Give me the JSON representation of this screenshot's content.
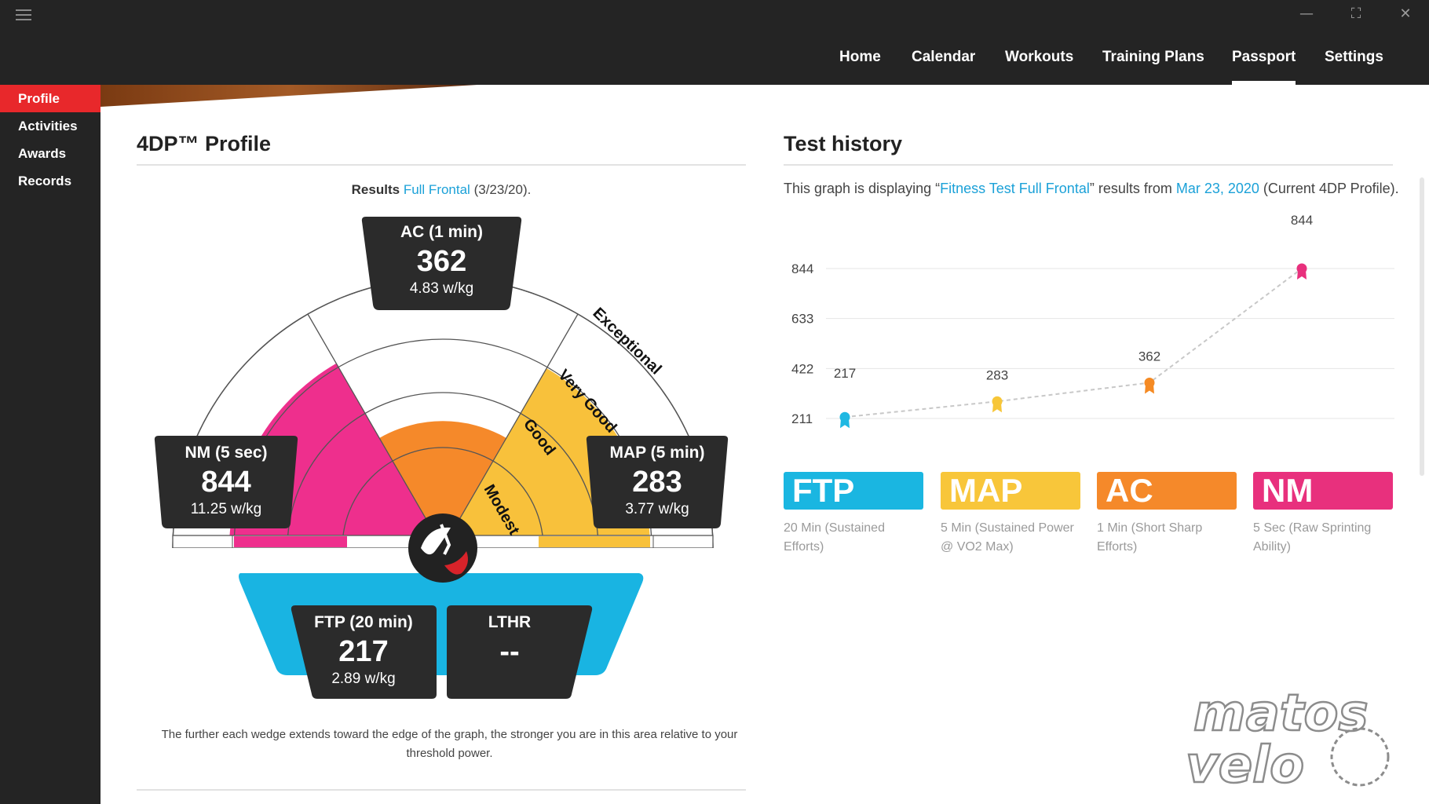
{
  "nav": {
    "items": [
      "Home",
      "Calendar",
      "Workouts",
      "Training Plans",
      "Passport",
      "Settings"
    ],
    "active": "Passport"
  },
  "sidebar": {
    "items": [
      "Profile",
      "Activities",
      "Awards",
      "Records"
    ],
    "active": "Profile"
  },
  "window_controls": {
    "minimize": "—",
    "maximize": "⛶",
    "close": "✕"
  },
  "profile": {
    "title": "4DP™ Profile",
    "results_label": "Results",
    "results_link": "Full Frontal",
    "results_date": "(3/23/20).",
    "zones": [
      "Modest",
      "Good",
      "Very Good",
      "Exceptional"
    ],
    "ac": {
      "label": "AC (1 min)",
      "value": "362",
      "wkg": "4.83 w/kg"
    },
    "nm": {
      "label": "NM (5 sec)",
      "value": "844",
      "wkg": "11.25 w/kg"
    },
    "map": {
      "label": "MAP (5 min)",
      "value": "283",
      "wkg": "3.77 w/kg"
    },
    "ftp": {
      "label": "FTP (20 min)",
      "value": "217",
      "wkg": "2.89 w/kg"
    },
    "lthr": {
      "label": "LTHR",
      "value": "--"
    },
    "footnote": "The further each wedge extends toward the edge of the graph, the stronger you are in this area relative to your threshold power."
  },
  "history": {
    "title": "Test history",
    "desc_prefix": "This graph is displaying “",
    "desc_link1": "Fitness Test Full Frontal",
    "desc_mid": "” results from ",
    "desc_link2": "Mar 23, 2020",
    "desc_suffix": " (Current 4DP Profile)."
  },
  "chart_data": {
    "type": "line",
    "categories": [
      "FTP",
      "MAP",
      "AC",
      "NM"
    ],
    "values": [
      217,
      283,
      362,
      844
    ],
    "yticks": [
      211,
      422,
      633,
      844
    ],
    "ylim": [
      0,
      1055
    ],
    "point_colors": [
      "#1fb8e2",
      "#f7c638",
      "#f58a23",
      "#e8307d"
    ],
    "grid": true,
    "title": "",
    "xlabel": "",
    "ylabel": ""
  },
  "categories": [
    {
      "name": "FTP",
      "desc": "20 Min (Sustained Efforts)",
      "color": "#1ab6e1"
    },
    {
      "name": "MAP",
      "desc": "5 Min (Sustained Power @ VO2 Max)",
      "color": "#f8c63a"
    },
    {
      "name": "AC",
      "desc": "1 Min (Short Sharp Efforts)",
      "color": "#f5892a"
    },
    {
      "name": "NM",
      "desc": "5 Sec (Raw Sprinting Ability)",
      "color": "#e8307d"
    }
  ],
  "watermark": {
    "line1": "matos",
    "line2": "velo"
  }
}
